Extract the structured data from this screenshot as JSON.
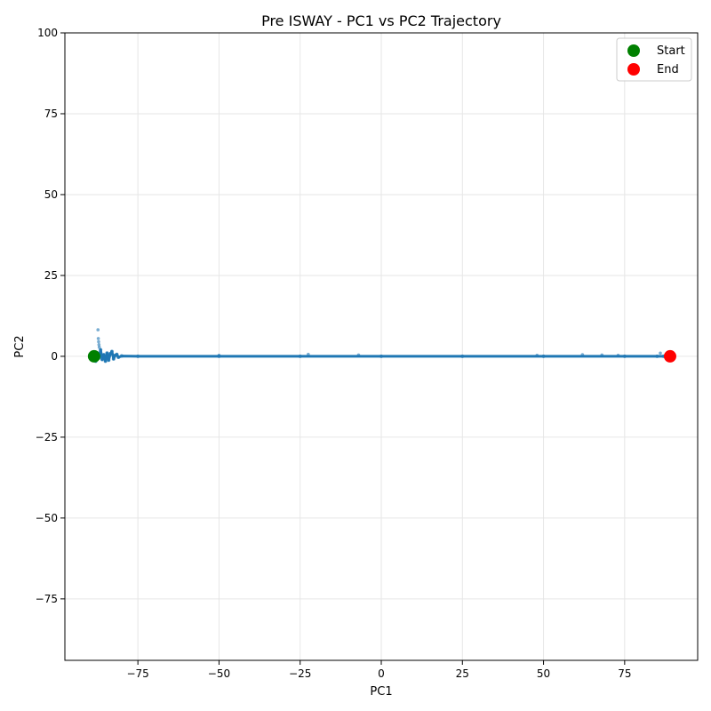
{
  "chart_data": {
    "type": "scatter",
    "title": "Pre ISWAY - PC1 vs PC2 Trajectory",
    "xlabel": "PC1",
    "ylabel": "PC2",
    "xlim": [
      -97.5,
      97.5
    ],
    "ylim": [
      -94,
      100
    ],
    "xticks": [
      -75,
      -50,
      -25,
      0,
      25,
      50,
      75
    ],
    "yticks": [
      -75,
      -50,
      -25,
      0,
      25,
      50,
      75,
      100
    ],
    "xtick_labels": [
      "−75",
      "−50",
      "−25",
      "0",
      "25",
      "50",
      "75"
    ],
    "ytick_labels": [
      "−75",
      "−50",
      "−25",
      "0",
      "25",
      "50",
      "75",
      "100"
    ],
    "grid": true,
    "legend_position": "top-right",
    "colors": {
      "trajectory": "#1f77b4",
      "start": "#008000",
      "end": "#ff0000",
      "grid": "#e6e6e6"
    },
    "series": [
      {
        "trajectory": true,
        "x": [
          -88.5,
          -88,
          -87.5,
          -87,
          -86.5,
          -86,
          -85.5,
          -85,
          -84.5,
          -84,
          -83.5,
          -83,
          -82.5,
          -82,
          -81.5,
          -81,
          -80,
          -75,
          -50,
          -25,
          0,
          25,
          50,
          75,
          85,
          87,
          88.5
        ],
        "y": [
          0,
          -1.5,
          1,
          -0.5,
          2,
          -1,
          0.5,
          -1.5,
          1,
          -1.2,
          0.8,
          1.5,
          -0.8,
          0.3,
          0.6,
          -0.3,
          0.1,
          0,
          0,
          0,
          0,
          0,
          0,
          0,
          0,
          0,
          0
        ]
      },
      {
        "scatter_only": true,
        "x": [
          -87.3,
          -87.2,
          -87.1,
          -87.0,
          -86.9,
          -22.5,
          -50,
          -7,
          48,
          62,
          68,
          73,
          86
        ],
        "y": [
          8.2,
          5.5,
          4.5,
          3.6,
          2.8,
          0.6,
          0.3,
          0.4,
          0.3,
          0.5,
          0.4,
          0.3,
          1.0
        ]
      },
      {
        "name": "Start",
        "x": [
          -88.5
        ],
        "y": [
          0
        ]
      },
      {
        "name": "End",
        "x": [
          89
        ],
        "y": [
          0
        ]
      }
    ]
  }
}
